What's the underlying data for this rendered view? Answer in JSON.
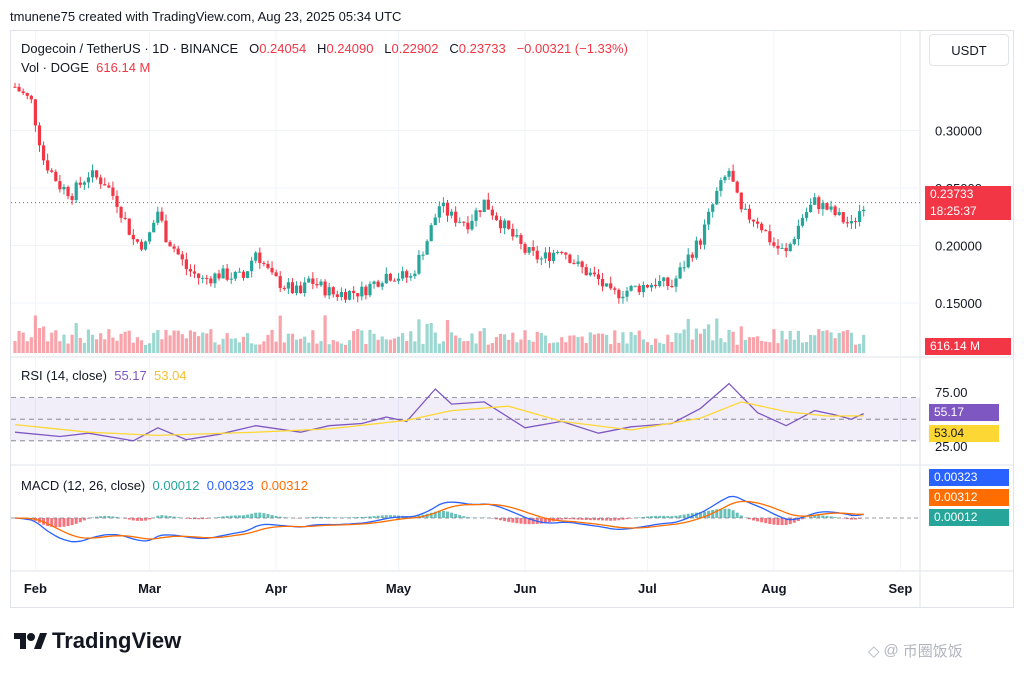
{
  "top_caption": "tmunene75 created with TradingView.com, Aug 23, 2025 05:34 UTC",
  "quote_currency": "USDT",
  "instrument": {
    "title": "Dogecoin / TetherUS · 1D · BINANCE",
    "open_label": "O",
    "open": "0.24054",
    "high_label": "H",
    "high": "0.24090",
    "low_label": "L",
    "low": "0.22902",
    "close_label": "C",
    "close": "0.23733",
    "change": "−0.00321 (−1.33%)"
  },
  "volume": {
    "label": "Vol · DOGE",
    "value": "616.14 M",
    "tag": "616.14 M"
  },
  "price_tag": {
    "price": "0.23733",
    "countdown": "18:25:37"
  },
  "rsi": {
    "title": "RSI (14, close)",
    "value": "55.17",
    "ma": "53.04"
  },
  "macd": {
    "title": "MACD (12, 26, close)",
    "hist": "0.00012",
    "macd": "0.00323",
    "signal": "0.00312"
  },
  "brand": {
    "name": "TradingView"
  },
  "watermark": "币圈饭饭",
  "colors": {
    "up": "#26a69a",
    "down": "#f23645",
    "rsi_line": "#7e57c2",
    "rsi_ma": "#fdd835",
    "macd": "#2962ff",
    "signal": "#ff6d00"
  },
  "chart_data": [
    {
      "type": "candlestick",
      "title": "Dogecoin / TetherUS · 1D · BINANCE",
      "y_ticks": [
        "0.30000",
        "0.25000",
        "0.20000",
        "0.15000"
      ],
      "ylim": [
        0.13,
        0.33
      ],
      "x_ticks": [
        "Feb",
        "Mar",
        "Apr",
        "May",
        "Jun",
        "Jul",
        "Aug",
        "Sep"
      ],
      "close_series": [
        [
          "2025-01-27",
          0.338
        ],
        [
          "2025-01-31",
          0.325
        ],
        [
          "2025-02-03",
          0.275
        ],
        [
          "2025-02-07",
          0.252
        ],
        [
          "2025-02-10",
          0.245
        ],
        [
          "2025-02-14",
          0.262
        ],
        [
          "2025-02-18",
          0.255
        ],
        [
          "2025-02-21",
          0.238
        ],
        [
          "2025-02-25",
          0.205
        ],
        [
          "2025-02-28",
          0.2
        ],
        [
          "2025-03-03",
          0.23
        ],
        [
          "2025-03-05",
          0.208
        ],
        [
          "2025-03-07",
          0.198
        ],
        [
          "2025-03-10",
          0.18
        ],
        [
          "2025-03-14",
          0.17
        ],
        [
          "2025-03-18",
          0.175
        ],
        [
          "2025-03-24",
          0.172
        ],
        [
          "2025-03-27",
          0.195
        ],
        [
          "2025-03-31",
          0.172
        ],
        [
          "2025-04-04",
          0.163
        ],
        [
          "2025-04-07",
          0.158
        ],
        [
          "2025-04-09",
          0.17
        ],
        [
          "2025-04-15",
          0.158
        ],
        [
          "2025-04-22",
          0.16
        ],
        [
          "2025-04-28",
          0.175
        ],
        [
          "2025-05-04",
          0.172
        ],
        [
          "2025-05-08",
          0.205
        ],
        [
          "2025-05-11",
          0.235
        ],
        [
          "2025-05-14",
          0.225
        ],
        [
          "2025-05-18",
          0.22
        ],
        [
          "2025-05-22",
          0.238
        ],
        [
          "2025-05-25",
          0.225
        ],
        [
          "2025-05-28",
          0.212
        ],
        [
          "2025-06-01",
          0.195
        ],
        [
          "2025-06-05",
          0.188
        ],
        [
          "2025-06-10",
          0.198
        ],
        [
          "2025-06-14",
          0.182
        ],
        [
          "2025-06-19",
          0.17
        ],
        [
          "2025-06-22",
          0.157
        ],
        [
          "2025-06-27",
          0.162
        ],
        [
          "2025-07-03",
          0.168
        ],
        [
          "2025-07-07",
          0.165
        ],
        [
          "2025-07-11",
          0.19
        ],
        [
          "2025-07-14",
          0.205
        ],
        [
          "2025-07-18",
          0.245
        ],
        [
          "2025-07-21",
          0.265
        ],
        [
          "2025-07-24",
          0.228
        ],
        [
          "2025-07-28",
          0.222
        ],
        [
          "2025-08-01",
          0.2
        ],
        [
          "2025-08-04",
          0.193
        ],
        [
          "2025-08-08",
          0.225
        ],
        [
          "2025-08-11",
          0.238
        ],
        [
          "2025-08-14",
          0.232
        ],
        [
          "2025-08-18",
          0.222
        ],
        [
          "2025-08-20",
          0.217
        ],
        [
          "2025-08-23",
          0.237
        ]
      ]
    },
    {
      "type": "bar",
      "title": "Vol · DOGE",
      "last_value": "616.14 M"
    },
    {
      "type": "line",
      "title": "RSI (14, close)",
      "y_ticks": [
        "75.00",
        "25.00"
      ],
      "ylim": [
        15,
        90
      ],
      "series": [
        {
          "name": "RSI",
          "last": 55.17,
          "points": [
            [
              "2025-01-27",
              38
            ],
            [
              "2025-02-07",
              34
            ],
            [
              "2025-02-14",
              37
            ],
            [
              "2025-02-25",
              30
            ],
            [
              "2025-03-03",
              42
            ],
            [
              "2025-03-10",
              31
            ],
            [
              "2025-03-18",
              36
            ],
            [
              "2025-03-27",
              44
            ],
            [
              "2025-04-07",
              38
            ],
            [
              "2025-04-14",
              44
            ],
            [
              "2025-04-22",
              46
            ],
            [
              "2025-04-28",
              52
            ],
            [
              "2025-05-03",
              48
            ],
            [
              "2025-05-10",
              78
            ],
            [
              "2025-05-14",
              64
            ],
            [
              "2025-05-22",
              66
            ],
            [
              "2025-06-01",
              42
            ],
            [
              "2025-06-10",
              48
            ],
            [
              "2025-06-19",
              37
            ],
            [
              "2025-06-27",
              43
            ],
            [
              "2025-07-07",
              46
            ],
            [
              "2025-07-14",
              60
            ],
            [
              "2025-07-21",
              83
            ],
            [
              "2025-07-28",
              56
            ],
            [
              "2025-08-04",
              44
            ],
            [
              "2025-08-11",
              58
            ],
            [
              "2025-08-16",
              54
            ],
            [
              "2025-08-20",
              50
            ],
            [
              "2025-08-23",
              55.17
            ]
          ]
        },
        {
          "name": "RSI-based MA",
          "last": 53.04,
          "points": [
            [
              "2025-01-27",
              45
            ],
            [
              "2025-02-14",
              38
            ],
            [
              "2025-03-03",
              35
            ],
            [
              "2025-03-27",
              38
            ],
            [
              "2025-04-14",
              41
            ],
            [
              "2025-05-03",
              49
            ],
            [
              "2025-05-14",
              58
            ],
            [
              "2025-05-28",
              62
            ],
            [
              "2025-06-10",
              48
            ],
            [
              "2025-06-27",
              40
            ],
            [
              "2025-07-14",
              51
            ],
            [
              "2025-07-24",
              66
            ],
            [
              "2025-08-04",
              57
            ],
            [
              "2025-08-14",
              53
            ],
            [
              "2025-08-23",
              53.04
            ]
          ]
        }
      ]
    },
    {
      "type": "line",
      "title": "MACD (12, 26, close)",
      "series": [
        {
          "name": "Histogram",
          "last": 0.00012
        },
        {
          "name": "MACD",
          "last": 0.00323
        },
        {
          "name": "Signal",
          "last": 0.00312
        }
      ]
    }
  ]
}
